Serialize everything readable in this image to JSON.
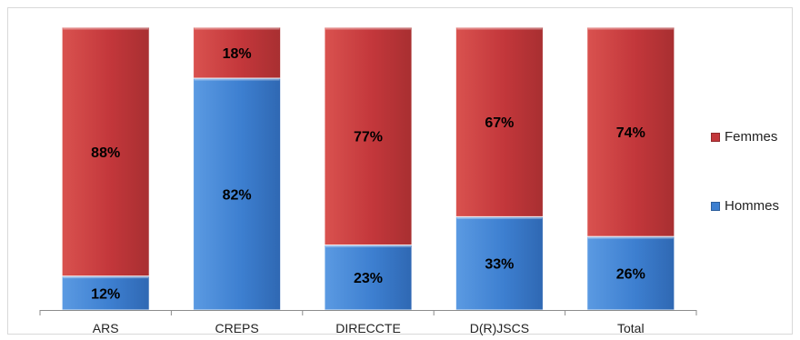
{
  "chart_data": {
    "type": "bar",
    "stacked": true,
    "normalized": true,
    "title": "",
    "xlabel": "",
    "ylabel": "",
    "ylim": [
      0,
      100
    ],
    "grid": false,
    "legend_position": "right",
    "categories": [
      "ARS",
      "CREPS",
      "DIRECCTE",
      "D(R)JSCS",
      "Total"
    ],
    "series": [
      {
        "name": "Hommes",
        "color": "#3d7fd0",
        "values": [
          12,
          82,
          23,
          33,
          26
        ],
        "labels": [
          "12%",
          "82%",
          "23%",
          "33%",
          "26%"
        ]
      },
      {
        "name": "Femmes",
        "color": "#c3373b",
        "values": [
          88,
          18,
          77,
          67,
          74
        ],
        "labels": [
          "88%",
          "18%",
          "77%",
          "67%",
          "74%"
        ]
      }
    ]
  },
  "legend": {
    "femmes_label": "Femmes",
    "hommes_label": "Hommes"
  }
}
